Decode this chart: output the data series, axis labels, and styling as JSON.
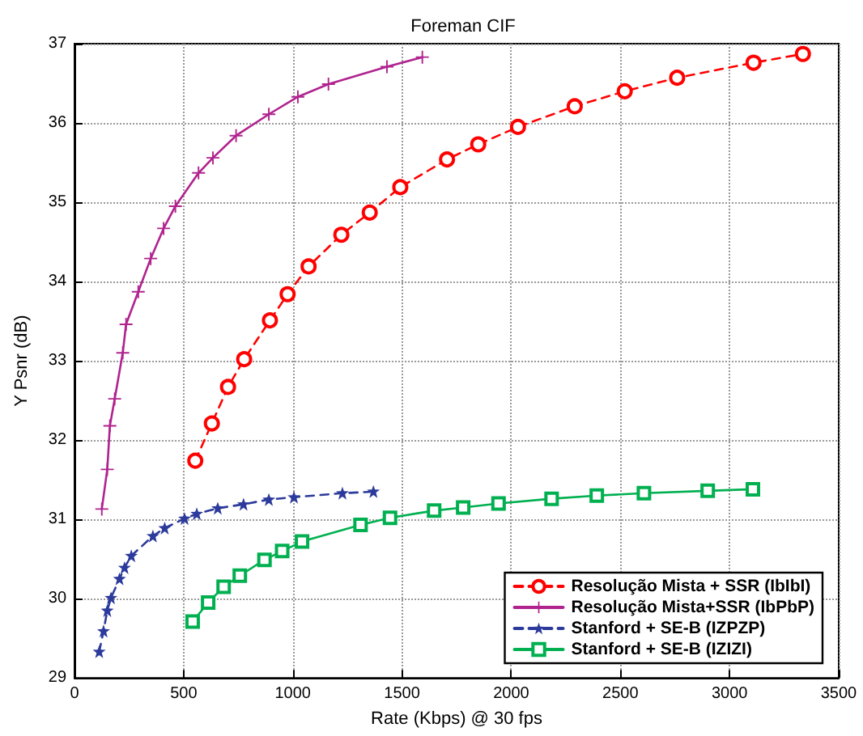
{
  "chart_data": {
    "type": "line",
    "title": "Foreman CIF",
    "xlabel": "Rate (Kbps) @ 30 fps",
    "ylabel": "Y Psnr (dB)",
    "xlim": [
      0,
      3500
    ],
    "xticks": [
      0,
      500,
      1000,
      1500,
      2000,
      2500,
      3000,
      3500
    ],
    "ylim": [
      29,
      37
    ],
    "yticks": [
      29,
      30,
      31,
      32,
      33,
      34,
      35,
      36,
      37
    ],
    "grid": true,
    "legend": "bottom right",
    "series": [
      {
        "name": "Resolução Mista + SSR (IbIbI)",
        "color": "#ff0000",
        "marker": "circle",
        "line_style": "dashed",
        "x": [
          553,
          629,
          703,
          777,
          895,
          976,
          1072,
          1222,
          1352,
          1492,
          1706,
          1849,
          2031,
          2291,
          2520,
          2760,
          3110,
          3336
        ],
        "values": [
          31.74,
          32.21,
          32.67,
          33.02,
          33.51,
          33.84,
          34.19,
          34.59,
          34.87,
          35.19,
          35.54,
          35.73,
          35.95,
          36.21,
          36.4,
          36.57,
          36.76,
          36.87
        ]
      },
      {
        "name": "Resolução Mista+SSR (IbPbP)",
        "color": "#b0238f",
        "marker": "cross",
        "line_style": "solid",
        "x": [
          125,
          150,
          162,
          184,
          221,
          236,
          292,
          349,
          408,
          462,
          568,
          634,
          740,
          890,
          1023,
          1163,
          1431,
          1593
        ],
        "values": [
          31.13,
          31.63,
          32.18,
          32.52,
          33.1,
          33.46,
          33.87,
          34.29,
          34.67,
          34.95,
          35.37,
          35.56,
          35.84,
          36.11,
          36.33,
          36.49,
          36.71,
          36.83
        ]
      },
      {
        "name": "Stanford + SE-B (IZPZP)",
        "color": "#2b3a9b",
        "marker": "star",
        "line_style": "dashed",
        "x": [
          113,
          133,
          150,
          167,
          206,
          229,
          260,
          359,
          413,
          504,
          560,
          656,
          774,
          890,
          1005,
          1227,
          1369
        ],
        "values": [
          29.33,
          29.59,
          29.85,
          30.01,
          30.25,
          30.39,
          30.54,
          30.79,
          30.89,
          31.01,
          31.07,
          31.14,
          31.19,
          31.25,
          31.28,
          31.33,
          31.35
        ]
      },
      {
        "name": "Stanford + SE-B (IZIZI)",
        "color": "#00b050",
        "marker": "square",
        "line_style": "solid",
        "x": [
          541,
          612,
          683,
          757,
          870,
          951,
          1042,
          1310,
          1445,
          1647,
          1780,
          1942,
          2185,
          2392,
          2608,
          2900,
          3107
        ],
        "values": [
          29.71,
          29.95,
          30.15,
          30.29,
          30.49,
          30.6,
          30.72,
          30.93,
          31.02,
          31.11,
          31.15,
          31.2,
          31.26,
          31.3,
          31.33,
          31.36,
          31.38
        ]
      }
    ]
  }
}
